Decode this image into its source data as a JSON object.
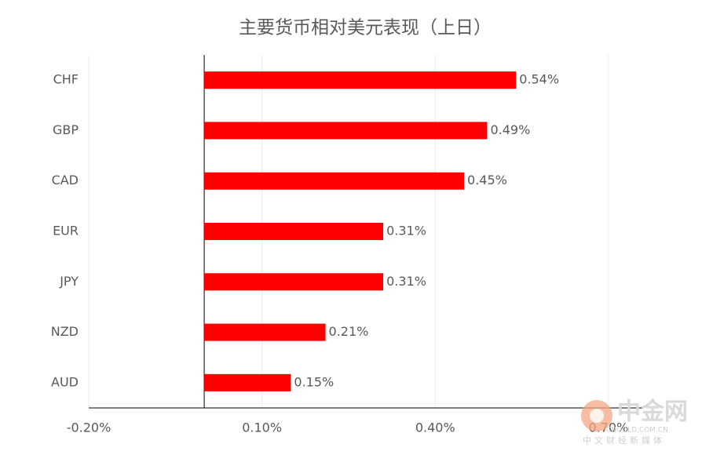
{
  "chart_data": {
    "type": "hbar",
    "title": "主要货币相对美元表现（上日）",
    "categories": [
      "CHF",
      "GBP",
      "CAD",
      "EUR",
      "JPY",
      "NZD",
      "AUD"
    ],
    "values": [
      0.54,
      0.49,
      0.45,
      0.31,
      0.31,
      0.21,
      0.15
    ],
    "value_labels": [
      "0.54%",
      "0.49%",
      "0.45%",
      "0.31%",
      "0.31%",
      "0.21%",
      "0.15%"
    ],
    "color": "#ff0000",
    "xlim": [
      -0.2,
      0.76
    ],
    "xticks": [
      {
        "value": -0.2,
        "label": "-0.20%"
      },
      {
        "value": 0.1,
        "label": "0.10%"
      },
      {
        "value": 0.4,
        "label": "0.40%"
      },
      {
        "value": 0.7,
        "label": "0.70%"
      }
    ],
    "grid": true
  },
  "watermark": {
    "name": "中金网",
    "site": "CNGOLD.COM.CN",
    "slogan": "中文财经新媒体"
  }
}
